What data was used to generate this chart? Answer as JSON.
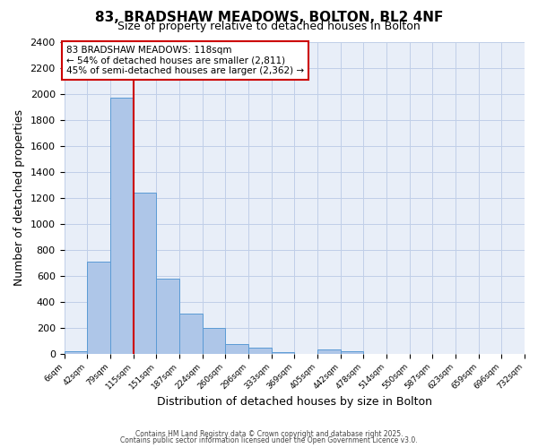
{
  "title": "83, BRADSHAW MEADOWS, BOLTON, BL2 4NF",
  "subtitle": "Size of property relative to detached houses in Bolton",
  "xlabel": "Distribution of detached houses by size in Bolton",
  "ylabel": "Number of detached properties",
  "bin_labels": [
    "6sqm",
    "42sqm",
    "79sqm",
    "115sqm",
    "151sqm",
    "187sqm",
    "224sqm",
    "260sqm",
    "296sqm",
    "333sqm",
    "369sqm",
    "405sqm",
    "442sqm",
    "478sqm",
    "514sqm",
    "550sqm",
    "587sqm",
    "623sqm",
    "659sqm",
    "696sqm",
    "732sqm"
  ],
  "bar_values": [
    15,
    710,
    1970,
    1240,
    575,
    305,
    200,
    75,
    45,
    10,
    0,
    35,
    15,
    0,
    0,
    0,
    0,
    0,
    0,
    0
  ],
  "bar_color": "#aec6e8",
  "bar_edge_color": "#5b9bd5",
  "bg_color": "#e8eef8",
  "grid_color": "#c0cfe8",
  "vline_x": 3,
  "vline_color": "#cc0000",
  "annotation_text": "83 BRADSHAW MEADOWS: 118sqm\n← 54% of detached houses are smaller (2,811)\n45% of semi-detached houses are larger (2,362) →",
  "annotation_box_edge": "#cc0000",
  "ylim": [
    0,
    2400
  ],
  "yticks": [
    0,
    200,
    400,
    600,
    800,
    1000,
    1200,
    1400,
    1600,
    1800,
    2000,
    2200,
    2400
  ],
  "footer1": "Contains HM Land Registry data © Crown copyright and database right 2025.",
  "footer2": "Contains public sector information licensed under the Open Government Licence v3.0."
}
